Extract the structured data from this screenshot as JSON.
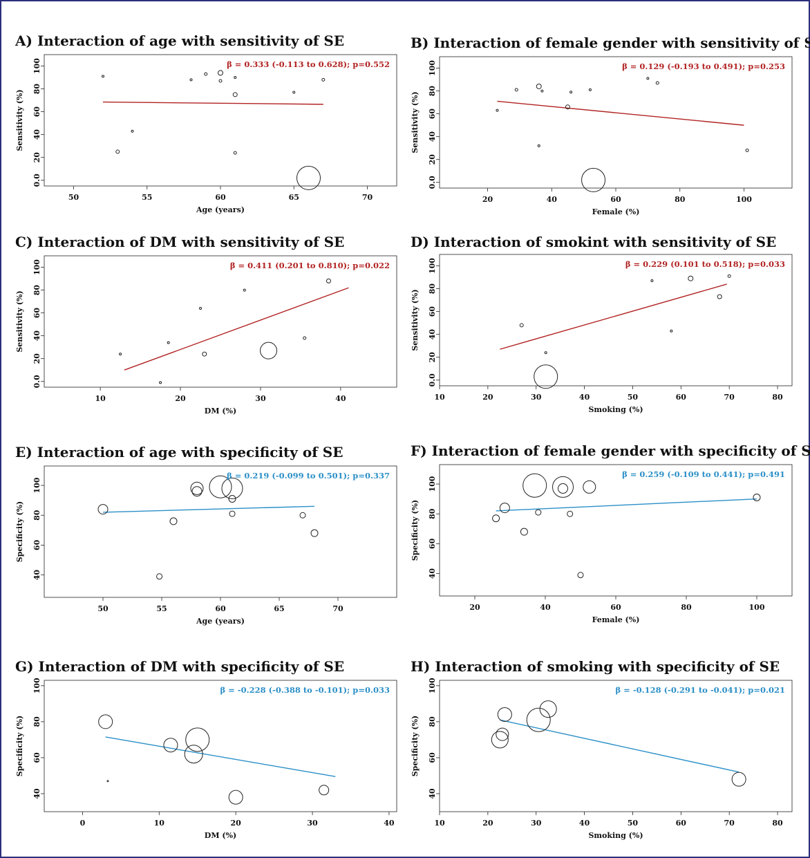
{
  "chart_data": [
    {
      "id": "A",
      "type": "scatter",
      "title": "A) Interaction of age with sensitivity of SE",
      "xlabel": "Age (years)",
      "ylabel": "Sensitivity (%)",
      "xlim": [
        48,
        72
      ],
      "ylim": [
        -5,
        110
      ],
      "xticks": [
        50,
        55,
        60,
        65,
        70
      ],
      "yticks": [
        0,
        20,
        40,
        60,
        80,
        100
      ],
      "ytick_labels": [
        "0.0",
        "20",
        "40",
        "60",
        "80",
        "100"
      ],
      "annotation": "β = 0.333 (-0.113 to 0.628); p=0.552",
      "line_color": "#b22222",
      "regression": [
        [
          52,
          68.5
        ],
        [
          67,
          66.5
        ]
      ],
      "points": [
        {
          "x": 52,
          "y": 91,
          "r": 1.5
        },
        {
          "x": 53,
          "y": 25,
          "r": 2.5
        },
        {
          "x": 54,
          "y": 43,
          "r": 1.5
        },
        {
          "x": 58,
          "y": 88,
          "r": 1.5
        },
        {
          "x": 59,
          "y": 93,
          "r": 2
        },
        {
          "x": 60,
          "y": 94,
          "r": 3.5
        },
        {
          "x": 60,
          "y": 87,
          "r": 2
        },
        {
          "x": 61,
          "y": 90,
          "r": 1.5
        },
        {
          "x": 61,
          "y": 75,
          "r": 3
        },
        {
          "x": 61,
          "y": 24,
          "r": 2
        },
        {
          "x": 65,
          "y": 77,
          "r": 1.5
        },
        {
          "x": 66,
          "y": 2,
          "r": 17
        },
        {
          "x": 67,
          "y": 88,
          "r": 2
        }
      ]
    },
    {
      "id": "B",
      "type": "scatter",
      "title": "B) Interaction of female gender with sensitivity of SE",
      "xlabel": "Female (%)",
      "ylabel": "Sensitivity (%)",
      "xlim": [
        5,
        115
      ],
      "ylim": [
        -5,
        110
      ],
      "xticks": [
        20,
        40,
        60,
        80,
        100
      ],
      "yticks": [
        0,
        20,
        40,
        60,
        80,
        100
      ],
      "ytick_labels": [
        "0.0",
        "20",
        "40",
        "60",
        "80",
        "100"
      ],
      "annotation": "β = 0.129 (-0.193 to 0.491); p=0.253",
      "line_color": "#b22222",
      "regression": [
        [
          23,
          71
        ],
        [
          100,
          50
        ]
      ],
      "points": [
        {
          "x": 23,
          "y": 63,
          "r": 1.5
        },
        {
          "x": 29,
          "y": 81,
          "r": 2
        },
        {
          "x": 36,
          "y": 84,
          "r": 3.5
        },
        {
          "x": 37,
          "y": 80,
          "r": 1.5
        },
        {
          "x": 36,
          "y": 32,
          "r": 1.5
        },
        {
          "x": 45,
          "y": 66,
          "r": 3
        },
        {
          "x": 46,
          "y": 79,
          "r": 1.5
        },
        {
          "x": 52,
          "y": 81,
          "r": 1.5
        },
        {
          "x": 53,
          "y": 2,
          "r": 17
        },
        {
          "x": 70,
          "y": 91,
          "r": 1.5
        },
        {
          "x": 73,
          "y": 87,
          "r": 2
        },
        {
          "x": 101,
          "y": 28,
          "r": 2
        }
      ]
    },
    {
      "id": "C",
      "type": "scatter",
      "title": "C) Interaction of DM with sensitivity of SE",
      "xlabel": "DM (%)",
      "ylabel": "Sensitivity (%)",
      "xlim": [
        3,
        47
      ],
      "ylim": [
        -5,
        110
      ],
      "xticks": [
        10,
        20,
        30,
        40
      ],
      "yticks": [
        0,
        20,
        40,
        60,
        80,
        100
      ],
      "ytick_labels": [
        "0.0",
        "20",
        "40",
        "60",
        "80",
        "100"
      ],
      "annotation": "β = 0.411 (0.201 to 0.810); p=0.022",
      "line_color": "#b22222",
      "regression": [
        [
          13,
          10
        ],
        [
          41,
          82
        ]
      ],
      "points": [
        {
          "x": 12.5,
          "y": 24,
          "r": 1.5
        },
        {
          "x": 17.5,
          "y": -1,
          "r": 1.5
        },
        {
          "x": 18.5,
          "y": 34,
          "r": 1.5
        },
        {
          "x": 22.5,
          "y": 64,
          "r": 1.5
        },
        {
          "x": 23,
          "y": 24,
          "r": 3
        },
        {
          "x": 28,
          "y": 80,
          "r": 1.5
        },
        {
          "x": 31,
          "y": 27,
          "r": 12
        },
        {
          "x": 35.5,
          "y": 38,
          "r": 2
        },
        {
          "x": 38.5,
          "y": 88,
          "r": 3
        }
      ]
    },
    {
      "id": "D",
      "type": "scatter",
      "title": "D) Interaction of smokint with sensitivity of SE",
      "xlabel": "Smoking (%)",
      "ylabel": "Sensitivity (%)",
      "xlim": [
        10,
        83
      ],
      "ylim": [
        -5,
        110
      ],
      "xticks": [
        10,
        20,
        30,
        40,
        50,
        60,
        70,
        80
      ],
      "yticks": [
        0,
        20,
        40,
        60,
        80,
        100
      ],
      "ytick_labels": [
        "0.0",
        "20",
        "40",
        "60",
        "80",
        "100"
      ],
      "annotation": "β = 0.229 (0.101 to 0.518); p=0.033",
      "line_color": "#b22222",
      "regression": [
        [
          22.5,
          27
        ],
        [
          69.5,
          84
        ]
      ],
      "points": [
        {
          "x": 27,
          "y": 48,
          "r": 2.5
        },
        {
          "x": 32,
          "y": 24,
          "r": 1.5
        },
        {
          "x": 32,
          "y": 3,
          "r": 17
        },
        {
          "x": 54,
          "y": 87,
          "r": 1.5
        },
        {
          "x": 58,
          "y": 43,
          "r": 1.5
        },
        {
          "x": 62,
          "y": 89,
          "r": 3.5
        },
        {
          "x": 68,
          "y": 73,
          "r": 3
        },
        {
          "x": 70,
          "y": 91,
          "r": 2
        }
      ]
    },
    {
      "id": "E",
      "type": "scatter",
      "title": "E) Interaction of age with specificity of SE",
      "xlabel": "Age (years)",
      "ylabel": "Specificity (%)",
      "xlim": [
        45,
        75
      ],
      "ylim": [
        25,
        113
      ],
      "xticks": [
        50,
        55,
        60,
        65,
        70
      ],
      "yticks": [
        40,
        60,
        80,
        100
      ],
      "ytick_labels": [
        "40",
        "60",
        "80",
        "100"
      ],
      "annotation": "β = 0.219 (-0.099 to 0.501); p=0.337",
      "line_color": "#2a8fc8",
      "regression": [
        [
          50,
          82
        ],
        [
          68,
          86
        ]
      ],
      "points": [
        {
          "x": 50,
          "y": 84,
          "r": 7
        },
        {
          "x": 54.8,
          "y": 39,
          "r": 4
        },
        {
          "x": 56,
          "y": 76,
          "r": 5
        },
        {
          "x": 58,
          "y": 98,
          "r": 9
        },
        {
          "x": 58,
          "y": 96,
          "r": 7
        },
        {
          "x": 60,
          "y": 99,
          "r": 16
        },
        {
          "x": 61,
          "y": 98,
          "r": 15
        },
        {
          "x": 61,
          "y": 91,
          "r": 5
        },
        {
          "x": 61,
          "y": 81,
          "r": 4
        },
        {
          "x": 67,
          "y": 80,
          "r": 4
        },
        {
          "x": 68,
          "y": 68,
          "r": 5
        }
      ]
    },
    {
      "id": "F",
      "type": "scatter",
      "title": "F) Interaction of female gender with specificity of SE",
      "xlabel": "Female (%)",
      "ylabel": "Specificity (%)",
      "xlim": [
        10,
        110
      ],
      "ylim": [
        25,
        113
      ],
      "xticks": [
        20,
        40,
        60,
        80,
        100
      ],
      "yticks": [
        40,
        60,
        80,
        100
      ],
      "ytick_labels": [
        "40",
        "60",
        "80",
        "100"
      ],
      "annotation": "β = 0.259 (-0.109 to 0.441); p=0.491",
      "line_color": "#2a8fc8",
      "regression": [
        [
          26,
          82
        ],
        [
          100,
          90
        ]
      ],
      "points": [
        {
          "x": 26,
          "y": 77,
          "r": 5
        },
        {
          "x": 28.5,
          "y": 84,
          "r": 7
        },
        {
          "x": 34,
          "y": 68,
          "r": 5
        },
        {
          "x": 37,
          "y": 99,
          "r": 17
        },
        {
          "x": 38,
          "y": 81,
          "r": 4
        },
        {
          "x": 45,
          "y": 98,
          "r": 15
        },
        {
          "x": 45,
          "y": 97,
          "r": 7
        },
        {
          "x": 47,
          "y": 80,
          "r": 4
        },
        {
          "x": 50,
          "y": 39,
          "r": 4
        },
        {
          "x": 52.5,
          "y": 98,
          "r": 9
        },
        {
          "x": 100,
          "y": 91,
          "r": 5
        }
      ]
    },
    {
      "id": "G",
      "type": "scatter",
      "title": "G) Interaction of DM with specificity of SE",
      "xlabel": "DM (%)",
      "ylabel": "Specificity (%)",
      "xlim": [
        -5,
        41
      ],
      "ylim": [
        30,
        103
      ],
      "xticks": [
        0,
        10,
        20,
        30,
        40
      ],
      "yticks": [
        40,
        60,
        80,
        100
      ],
      "ytick_labels": [
        "40",
        "60",
        "80",
        "100"
      ],
      "annotation": "β = -0.228 (-0.388 to -0.101); p=0.033",
      "line_color": "#2a8fc8",
      "regression": [
        [
          3,
          71.5
        ],
        [
          33,
          49.5
        ]
      ],
      "points": [
        {
          "x": 3,
          "y": 80,
          "r": 10
        },
        {
          "x": 3.3,
          "y": 47,
          "r": 1
        },
        {
          "x": 11.5,
          "y": 67,
          "r": 10
        },
        {
          "x": 14.5,
          "y": 62,
          "r": 13
        },
        {
          "x": 15,
          "y": 70,
          "r": 17
        },
        {
          "x": 20,
          "y": 38,
          "r": 10
        },
        {
          "x": 31.5,
          "y": 42,
          "r": 7
        }
      ]
    },
    {
      "id": "H",
      "type": "scatter",
      "title": "H) Interaction of smoking with specificity of SE",
      "xlabel": "Smoking (%)",
      "ylabel": "Specificity (%)",
      "xlim": [
        10,
        83
      ],
      "ylim": [
        30,
        103
      ],
      "xticks": [
        10,
        20,
        30,
        40,
        50,
        60,
        70,
        80
      ],
      "yticks": [
        40,
        60,
        80,
        100
      ],
      "ytick_labels": [
        "40",
        "60",
        "80",
        "100"
      ],
      "annotation": "β = -0.128 (-0.291 to -0.041); p=0.021",
      "line_color": "#2a8fc8",
      "regression": [
        [
          22.5,
          81
        ],
        [
          72,
          52
        ]
      ],
      "points": [
        {
          "x": 22.5,
          "y": 70,
          "r": 12
        },
        {
          "x": 23,
          "y": 73,
          "r": 9
        },
        {
          "x": 23.5,
          "y": 84,
          "r": 10
        },
        {
          "x": 30.5,
          "y": 81,
          "r": 17
        },
        {
          "x": 32.5,
          "y": 87,
          "r": 12
        },
        {
          "x": 72,
          "y": 48,
          "r": 10
        }
      ]
    }
  ]
}
